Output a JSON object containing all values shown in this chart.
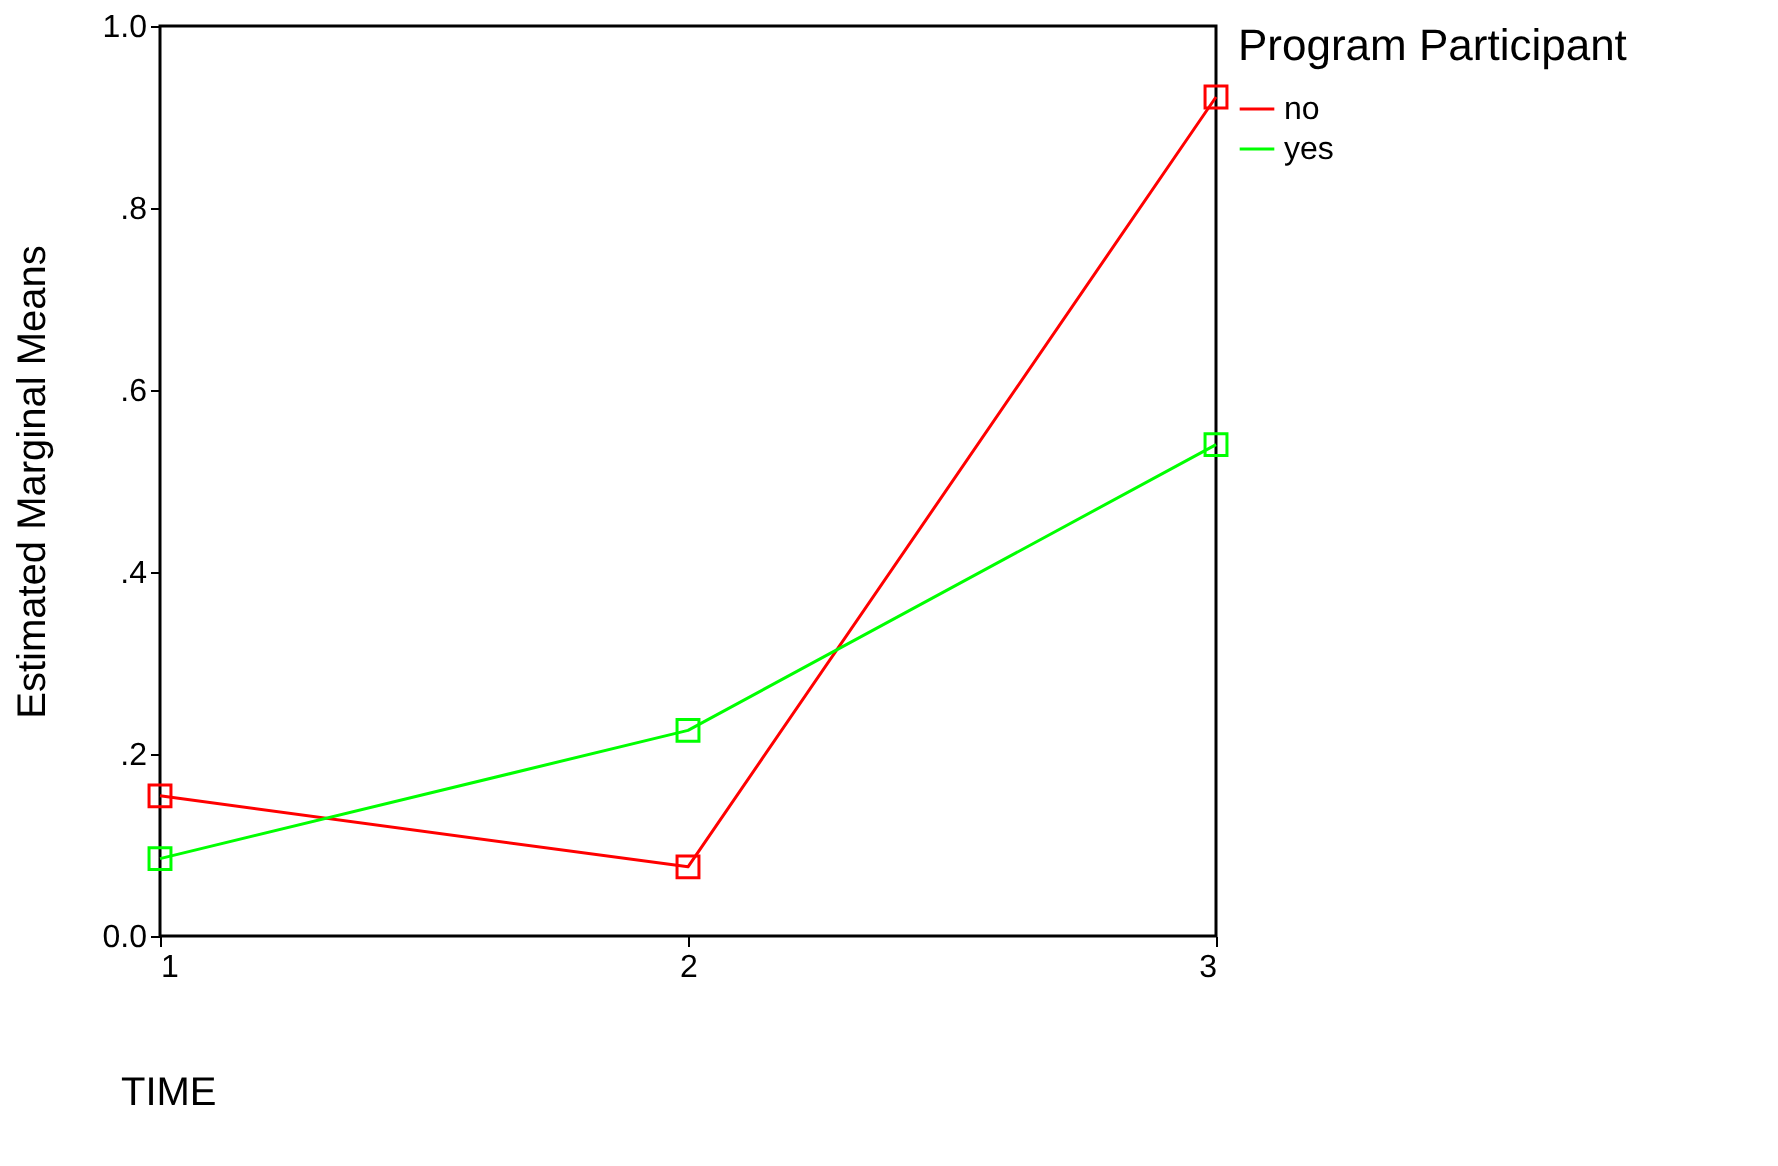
{
  "chart_data": {
    "type": "line",
    "xlabel": "TIME",
    "ylabel": "Estimated Marginal Means",
    "legend_title": "Program Participant",
    "x": [
      1,
      2,
      3
    ],
    "series": [
      {
        "name": "no",
        "color": "#ff0000",
        "values": [
          0.154,
          0.076,
          0.922
        ]
      },
      {
        "name": "yes",
        "color": "#00ff00",
        "values": [
          0.085,
          0.226,
          0.54
        ]
      }
    ],
    "xlim": [
      1,
      3
    ],
    "xticks": [
      1,
      2,
      3
    ],
    "ylim": [
      0,
      1
    ],
    "yticks": [
      {
        "value": 0,
        "label": "0.0"
      },
      {
        "value": 0.2,
        "label": ".2"
      },
      {
        "value": 0.4,
        "label": ".4"
      },
      {
        "value": 0.6,
        "label": ".6"
      },
      {
        "value": 0.8,
        "label": ".8"
      },
      {
        "value": 1,
        "label": "1.0"
      }
    ],
    "grid": false,
    "legend": "right",
    "marker": "square",
    "line_style": "solid"
  }
}
